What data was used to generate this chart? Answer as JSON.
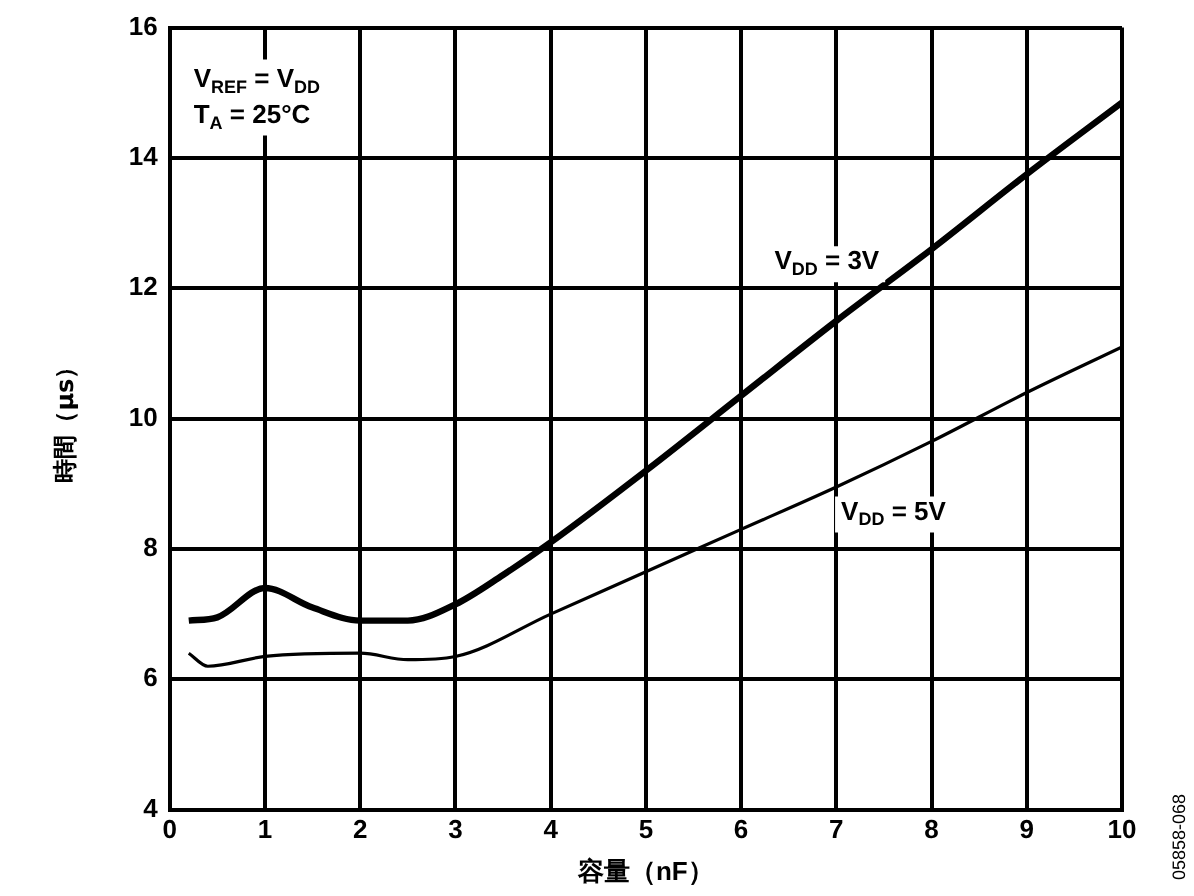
{
  "chart_data": {
    "type": "line",
    "xlabel": "容量（nF）",
    "ylabel": "時間（μs）",
    "xlim": [
      0,
      10
    ],
    "xticks": [
      0,
      1,
      2,
      3,
      4,
      5,
      6,
      7,
      8,
      9,
      10
    ],
    "ylim": [
      4,
      16
    ],
    "yticks": [
      4,
      6,
      8,
      10,
      12,
      14,
      16
    ],
    "grid": true,
    "legend": false,
    "marker": "none",
    "line_style": "solid",
    "series": [
      {
        "name": "V$_{DD}$ = 3V",
        "color": "#000000",
        "x": [
          0.2,
          0.5,
          1,
          1.5,
          2,
          2.5,
          3,
          3.5,
          4,
          5,
          6,
          7,
          8,
          9,
          10
        ],
        "values": [
          6.9,
          6.95,
          7.4,
          7.1,
          6.9,
          6.9,
          7.15,
          7.6,
          8.1,
          9.2,
          10.35,
          11.5,
          12.6,
          13.75,
          14.85
        ]
      },
      {
        "name": "V$_{DD}$ = 5V",
        "color": "#000000",
        "x": [
          0.2,
          0.4,
          1,
          2,
          2.5,
          3,
          4,
          5,
          6,
          7,
          8,
          9,
          10
        ],
        "values": [
          6.4,
          6.2,
          6.35,
          6.4,
          6.3,
          6.35,
          7.0,
          7.65,
          8.3,
          8.95,
          9.65,
          10.4,
          11.1
        ]
      }
    ],
    "annotations": [
      "V$_{REF}$ = V$_{DD}$",
      "T$_{A}$ = 25°C",
      "05858-068"
    ]
  }
}
